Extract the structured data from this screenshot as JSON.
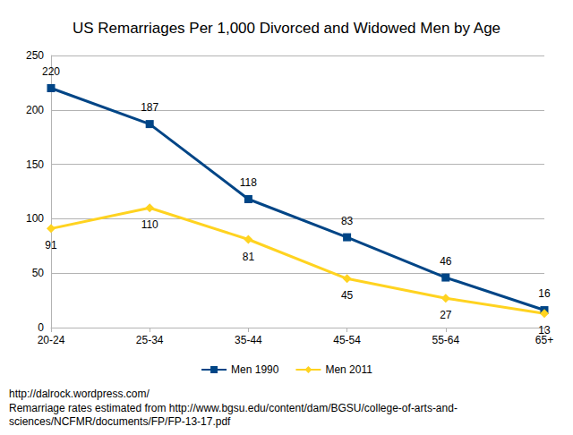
{
  "chart_data": {
    "type": "line",
    "title": "US Remarriages Per 1,000 Divorced and Widowed Men by Age",
    "categories": [
      "20-24",
      "25-34",
      "35-44",
      "45-54",
      "55-64",
      "65+"
    ],
    "series": [
      {
        "name": "Men 1990",
        "color": "#004586",
        "marker": "square",
        "values": [
          220,
          187,
          118,
          83,
          46,
          16
        ]
      },
      {
        "name": "Men 2011",
        "color": "#ffd320",
        "marker": "diamond",
        "values": [
          91,
          110,
          81,
          45,
          27,
          13
        ]
      }
    ],
    "ylim": [
      0,
      250
    ],
    "yticks": [
      0,
      50,
      100,
      150,
      200,
      250
    ],
    "grid": true,
    "legend": "bottom",
    "data_labels": true,
    "annotations": [
      "http://dalrock.wordpress.com/",
      "Remarriage rates estimated from http://www.bgsu.edu/content/dam/BGSU/college-of-arts-and-",
      "sciences/NCFMR/documents/FP/FP-13-17.pdf"
    ]
  }
}
